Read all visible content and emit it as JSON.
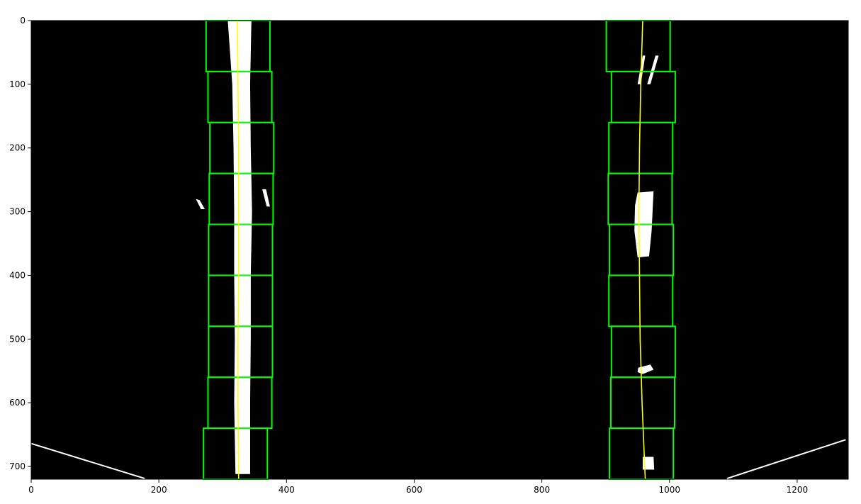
{
  "chart_data": {
    "type": "image",
    "image_size": {
      "width": 1280,
      "height": 720
    },
    "axes": {
      "xticks": [
        0,
        200,
        400,
        600,
        800,
        1000,
        1200
      ],
      "yticks": [
        0,
        100,
        200,
        300,
        400,
        500,
        600,
        700
      ],
      "xlim": [
        0,
        1280
      ],
      "ylim": [
        720,
        0
      ]
    },
    "colors": {
      "background": "#000000",
      "lane_pixels": "#ffffff",
      "windows": "#00ff00",
      "fit_line": "#ffff00"
    },
    "left_windows": [
      {
        "x1": 274,
        "y1": 0,
        "x2": 374,
        "y2": 80
      },
      {
        "x1": 277,
        "y1": 80,
        "x2": 377,
        "y2": 160
      },
      {
        "x1": 280,
        "y1": 160,
        "x2": 380,
        "y2": 240
      },
      {
        "x1": 279,
        "y1": 240,
        "x2": 379,
        "y2": 320
      },
      {
        "x1": 278,
        "y1": 320,
        "x2": 378,
        "y2": 400
      },
      {
        "x1": 278,
        "y1": 400,
        "x2": 378,
        "y2": 480
      },
      {
        "x1": 278,
        "y1": 480,
        "x2": 378,
        "y2": 560
      },
      {
        "x1": 277,
        "y1": 560,
        "x2": 377,
        "y2": 640
      },
      {
        "x1": 270,
        "y1": 640,
        "x2": 370,
        "y2": 720
      }
    ],
    "right_windows": [
      {
        "x1": 901,
        "y1": 0,
        "x2": 1001,
        "y2": 80
      },
      {
        "x1": 909,
        "y1": 80,
        "x2": 1009,
        "y2": 160
      },
      {
        "x1": 905,
        "y1": 160,
        "x2": 1005,
        "y2": 240
      },
      {
        "x1": 904,
        "y1": 240,
        "x2": 1004,
        "y2": 320
      },
      {
        "x1": 906,
        "y1": 320,
        "x2": 1006,
        "y2": 400
      },
      {
        "x1": 905,
        "y1": 400,
        "x2": 1005,
        "y2": 480
      },
      {
        "x1": 909,
        "y1": 480,
        "x2": 1009,
        "y2": 560
      },
      {
        "x1": 908,
        "y1": 560,
        "x2": 1008,
        "y2": 640
      },
      {
        "x1": 906,
        "y1": 640,
        "x2": 1006,
        "y2": 720
      }
    ],
    "left_fit": [
      {
        "x": 323,
        "y": 0
      },
      {
        "x": 324,
        "y": 100
      },
      {
        "x": 325,
        "y": 200
      },
      {
        "x": 325,
        "y": 300
      },
      {
        "x": 325,
        "y": 400
      },
      {
        "x": 324,
        "y": 500
      },
      {
        "x": 324,
        "y": 600
      },
      {
        "x": 325,
        "y": 720
      }
    ],
    "right_fit": [
      {
        "x": 958,
        "y": 0
      },
      {
        "x": 955,
        "y": 100
      },
      {
        "x": 953,
        "y": 200
      },
      {
        "x": 952,
        "y": 300
      },
      {
        "x": 953,
        "y": 400
      },
      {
        "x": 954,
        "y": 500
      },
      {
        "x": 957,
        "y": 600
      },
      {
        "x": 962,
        "y": 720
      }
    ],
    "pixel_blobs": [
      {
        "points": [
          [
            308,
            0
          ],
          [
            345,
            0
          ],
          [
            343,
            100
          ],
          [
            344,
            200
          ],
          [
            346,
            300
          ],
          [
            344,
            400
          ],
          [
            344,
            500
          ],
          [
            343,
            600
          ],
          [
            343,
            712
          ],
          [
            320,
            712
          ],
          [
            318,
            600
          ],
          [
            319,
            500
          ],
          [
            318,
            400
          ],
          [
            318,
            300
          ],
          [
            317,
            200
          ],
          [
            315,
            100
          ]
        ]
      },
      {
        "points": [
          [
            950,
            270
          ],
          [
            975,
            268
          ],
          [
            972,
            330
          ],
          [
            968,
            370
          ],
          [
            950,
            372
          ],
          [
            945,
            330
          ],
          [
            946,
            290
          ]
        ]
      },
      {
        "points": [
          [
            958,
            55
          ],
          [
            962,
            55
          ],
          [
            955,
            100
          ],
          [
            950,
            100
          ]
        ]
      },
      {
        "points": [
          [
            978,
            55
          ],
          [
            983,
            55
          ],
          [
            970,
            100
          ],
          [
            965,
            100
          ]
        ]
      },
      {
        "points": [
          [
            951,
            545
          ],
          [
            970,
            540
          ],
          [
            975,
            548
          ],
          [
            958,
            555
          ],
          [
            950,
            552
          ]
        ]
      },
      {
        "points": [
          [
            958,
            685
          ],
          [
            975,
            685
          ],
          [
            976,
            705
          ],
          [
            958,
            705
          ]
        ]
      },
      {
        "points": [
          [
            258,
            280
          ],
          [
            264,
            282
          ],
          [
            272,
            296
          ],
          [
            266,
            296
          ]
        ]
      },
      {
        "points": [
          [
            362,
            265
          ],
          [
            368,
            265
          ],
          [
            374,
            292
          ],
          [
            369,
            292
          ]
        ]
      }
    ],
    "road_edges": [
      {
        "x1": 0,
        "y1": 664,
        "x2": 178,
        "y2": 719
      },
      {
        "x1": 1090,
        "y1": 719,
        "x2": 1276,
        "y2": 658
      }
    ]
  }
}
